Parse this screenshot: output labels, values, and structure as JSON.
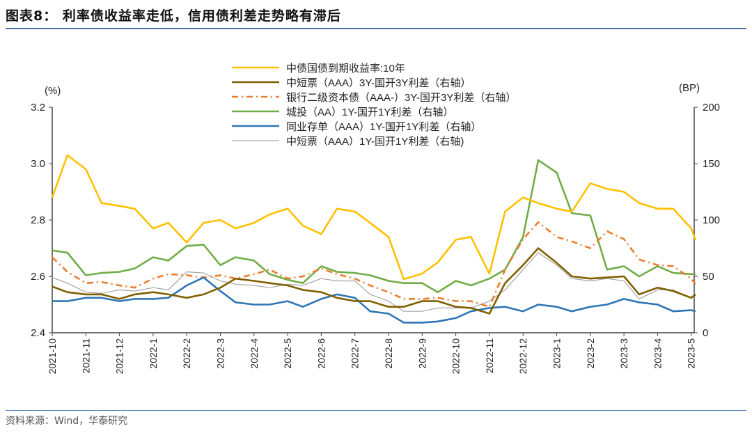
{
  "title": "图表8： 利率债收益率走低，信用债利差走势略有滞后",
  "source": "资料来源：Wind，华泰研究",
  "chart_data": {
    "type": "line",
    "left_unit": "(%)",
    "right_unit": "(BP)",
    "left_ylim": [
      2.4,
      3.2
    ],
    "left_ticks": [
      "2.4",
      "2.6",
      "2.8",
      "3.0",
      "3.2"
    ],
    "right_ylim": [
      0,
      200
    ],
    "right_ticks": [
      "0",
      "50",
      "100",
      "150",
      "200"
    ],
    "x_ticks": [
      "2021-10",
      "2021-11",
      "2021-12",
      "2022-1",
      "2022-2",
      "2022-3",
      "2022-4",
      "2022-5",
      "2022-6",
      "2022-7",
      "2022-8",
      "2022-9",
      "2022-10",
      "2022-11",
      "2022-12",
      "2023-1",
      "2023-2",
      "2023-3",
      "2023-4",
      "2023-5"
    ],
    "grid": false,
    "legend_position": "top-center",
    "x": [
      "2021-10-01",
      "2021-10-15",
      "2021-11-01",
      "2021-11-15",
      "2021-12-01",
      "2021-12-15",
      "2022-01-01",
      "2022-01-15",
      "2022-02-01",
      "2022-02-15",
      "2022-03-01",
      "2022-03-15",
      "2022-04-01",
      "2022-04-15",
      "2022-05-01",
      "2022-05-15",
      "2022-06-01",
      "2022-06-15",
      "2022-07-01",
      "2022-07-15",
      "2022-08-01",
      "2022-08-15",
      "2022-09-01",
      "2022-09-15",
      "2022-10-01",
      "2022-10-15",
      "2022-11-01",
      "2022-11-15",
      "2022-12-01",
      "2022-12-15",
      "2023-01-01",
      "2023-01-15",
      "2023-02-01",
      "2023-02-15",
      "2023-03-01",
      "2023-03-15",
      "2023-04-01",
      "2023-04-15",
      "2023-05-01",
      "2023-05-05"
    ],
    "series": [
      {
        "name": "中债国债到期收益率:10年",
        "axis": "left",
        "color": "#FFC000",
        "style": "solid",
        "values": [
          2.88,
          3.03,
          2.98,
          2.86,
          2.85,
          2.84,
          2.77,
          2.79,
          2.72,
          2.79,
          2.8,
          2.77,
          2.79,
          2.82,
          2.84,
          2.78,
          2.75,
          2.84,
          2.83,
          2.79,
          2.74,
          2.59,
          2.61,
          2.65,
          2.73,
          2.74,
          2.61,
          2.83,
          2.88,
          2.86,
          2.84,
          2.83,
          2.93,
          2.91,
          2.9,
          2.86,
          2.84,
          2.84,
          2.77,
          2.73
        ]
      },
      {
        "name": "中短票（AAA）3Y-国开3Y利差（右轴）",
        "axis": "right",
        "color": "#7F6000",
        "style": "solid",
        "values": [
          41,
          36,
          34,
          34,
          30,
          34,
          36,
          34,
          31,
          34,
          40,
          48,
          46,
          44,
          42,
          38,
          36,
          31,
          28,
          28,
          23,
          23,
          28,
          28,
          23,
          22,
          17,
          44,
          60,
          75,
          62,
          50,
          48,
          49,
          50,
          34,
          40,
          37,
          31,
          34
        ]
      },
      {
        "name": "银行二级资本债（AAA-）3Y-国开3Y利差（右轴）",
        "axis": "right",
        "color": "#ED7D31",
        "style": "dashdot",
        "values": [
          67,
          54,
          44,
          45,
          42,
          40,
          48,
          52,
          51,
          49,
          51,
          48,
          52,
          56,
          48,
          50,
          57,
          52,
          48,
          42,
          36,
          30,
          30,
          31,
          28,
          28,
          23,
          56,
          83,
          98,
          85,
          81,
          75,
          90,
          83,
          65,
          60,
          59,
          48,
          43
        ]
      },
      {
        "name": "城投（AA）1Y-国开1Y利差（右轴）",
        "axis": "right",
        "color": "#70AD47",
        "style": "solid",
        "values": [
          73,
          71,
          51,
          53,
          54,
          57,
          67,
          64,
          77,
          78,
          60,
          67,
          64,
          52,
          47,
          44,
          59,
          54,
          53,
          51,
          46,
          44,
          44,
          36,
          46,
          42,
          48,
          56,
          85,
          153,
          142,
          106,
          104,
          56,
          59,
          50,
          59,
          53,
          52,
          52
        ]
      },
      {
        "name": "同业存单（AAA）1Y-国开1Y利差（右轴）",
        "axis": "right",
        "color": "#2E75B6",
        "style": "solid",
        "values": [
          28,
          28,
          31,
          31,
          28,
          30,
          30,
          31,
          42,
          49,
          37,
          27,
          25,
          25,
          28,
          23,
          30,
          34,
          31,
          19,
          17,
          9,
          9,
          10,
          13,
          19,
          22,
          23,
          19,
          25,
          23,
          19,
          23,
          25,
          30,
          27,
          25,
          19,
          20,
          19
        ]
      },
      {
        "name": "中短票（AAA）1Y-国开1Y利差（右轴)",
        "axis": "right",
        "color": "#A6A6A6",
        "style": "thin",
        "values": [
          49,
          44,
          36,
          35,
          38,
          37,
          40,
          38,
          54,
          53,
          46,
          43,
          42,
          40,
          43,
          42,
          48,
          46,
          46,
          34,
          28,
          19,
          19,
          22,
          22,
          22,
          28,
          38,
          56,
          71,
          60,
          48,
          46,
          48,
          46,
          30,
          38,
          38,
          31,
          33
        ]
      }
    ]
  }
}
